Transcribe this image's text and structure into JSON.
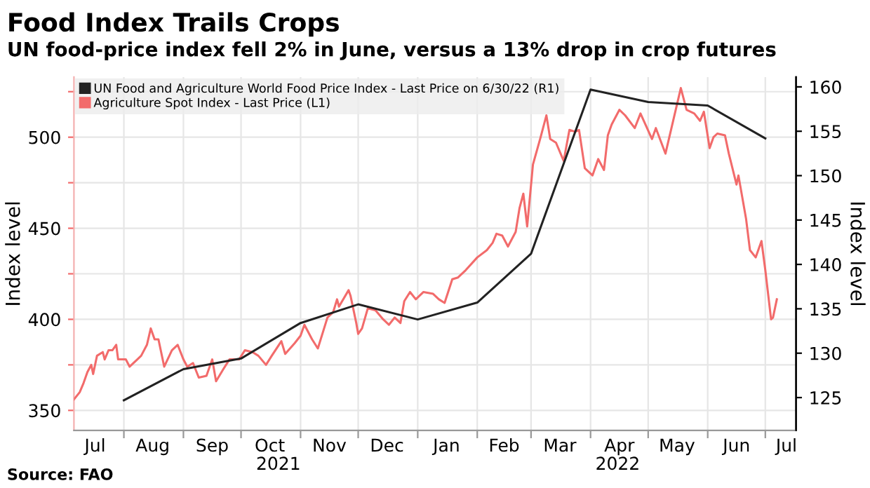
{
  "chart_data": {
    "type": "line",
    "title": "Food Index Trails Crops",
    "subtitle": "UN food-price index fell 2% in June, versus a 13% drop in crop futures",
    "ylabel": "Index level",
    "y2label": "Index level",
    "annotations": [
      "2021",
      "2022",
      "Source: FAO"
    ],
    "series": [
      {
        "name": "UN Food and Agriculture World Food Price Index - Last Price on 6/30/22 (R1)",
        "color": "#222222",
        "axis": "y2",
        "x": [
          "2021-08-01",
          "2021-09-01",
          "2021-10-01",
          "2021-11-01",
          "2021-12-01",
          "2022-01-01",
          "2022-02-01",
          "2022-03-01",
          "2022-04-01",
          "2022-05-01",
          "2022-06-01",
          "2022-07-01"
        ],
        "values": [
          124.7,
          128.2,
          129.4,
          133.4,
          135.5,
          133.8,
          135.7,
          141.2,
          159.7,
          158.3,
          157.9,
          154.2
        ]
      },
      {
        "name": "Agriculture Spot Index - Last Price (L1)",
        "color": "#f26b6b",
        "x": [
          "2021-07-06",
          "2021-07-09",
          "2021-07-11",
          "2021-07-13",
          "2021-07-15",
          "2021-07-16",
          "2021-07-18",
          "2021-07-21",
          "2021-07-22",
          "2021-07-24",
          "2021-07-26",
          "2021-07-28",
          "2021-07-29",
          "2021-08-02",
          "2021-08-04",
          "2021-08-08",
          "2021-08-10",
          "2021-08-13",
          "2021-08-15",
          "2021-08-17",
          "2021-08-19",
          "2021-08-22",
          "2021-08-26",
          "2021-08-29",
          "2021-09-01",
          "2021-09-03",
          "2021-09-06",
          "2021-09-09",
          "2021-09-13",
          "2021-09-16",
          "2021-09-18",
          "2021-09-22",
          "2021-09-25",
          "2021-09-30",
          "2021-10-03",
          "2021-10-07",
          "2021-10-10",
          "2021-10-14",
          "2021-10-17",
          "2021-10-22",
          "2021-10-24",
          "2021-10-29",
          "2021-11-01",
          "2021-11-03",
          "2021-11-07",
          "2021-11-10",
          "2021-11-15",
          "2021-11-18",
          "2021-11-20",
          "2021-11-21",
          "2021-11-26",
          "2021-11-27",
          "2021-11-30",
          "2021-12-01",
          "2021-12-03",
          "2021-12-06",
          "2021-12-10",
          "2021-12-14",
          "2021-12-17",
          "2021-12-20",
          "2021-12-23",
          "2021-12-25",
          "2021-12-28",
          "2021-12-31",
          "2022-01-04",
          "2022-01-09",
          "2022-01-12",
          "2022-01-15",
          "2022-01-19",
          "2022-01-22",
          "2022-01-26",
          "2022-02-01",
          "2022-02-06",
          "2022-02-09",
          "2022-02-11",
          "2022-02-14",
          "2022-02-17",
          "2022-02-21",
          "2022-02-23",
          "2022-02-25",
          "2022-02-27",
          "2022-03-02",
          "2022-03-06",
          "2022-03-09",
          "2022-03-11",
          "2022-03-14",
          "2022-03-18",
          "2022-03-21",
          "2022-03-24",
          "2022-03-26",
          "2022-03-29",
          "2022-04-02",
          "2022-04-05",
          "2022-04-08",
          "2022-04-10",
          "2022-04-12",
          "2022-04-16",
          "2022-04-19",
          "2022-04-24",
          "2022-04-27",
          "2022-05-03",
          "2022-05-05",
          "2022-05-10",
          "2022-05-14",
          "2022-05-18",
          "2022-05-21",
          "2022-05-25",
          "2022-05-28",
          "2022-05-30",
          "2022-06-02",
          "2022-06-04",
          "2022-06-06",
          "2022-06-10",
          "2022-06-12",
          "2022-06-16",
          "2022-06-17",
          "2022-06-21",
          "2022-06-23",
          "2022-06-26",
          "2022-06-29",
          "2022-07-01",
          "2022-07-04",
          "2022-07-05",
          "2022-07-07"
        ],
        "values": [
          356,
          360,
          365,
          371,
          375,
          370,
          380,
          382,
          378,
          383,
          383,
          386,
          378,
          378,
          374,
          378,
          380,
          386,
          395,
          389,
          389,
          374,
          383,
          386,
          378,
          374,
          376,
          368,
          369,
          378,
          366,
          373,
          378,
          378,
          383,
          382,
          380,
          375,
          380,
          388,
          381,
          387,
          391,
          397,
          389,
          384,
          401,
          404,
          411,
          407,
          416,
          413,
          398,
          392,
          395,
          406,
          405,
          400,
          397,
          401,
          398,
          410,
          415,
          411,
          415,
          414,
          411,
          409,
          422,
          423,
          427,
          434,
          438,
          442,
          447,
          446,
          440,
          448,
          461,
          469,
          451,
          485,
          500,
          512,
          499,
          497,
          487,
          504,
          503,
          504,
          483,
          479,
          488,
          482,
          501,
          507,
          515,
          512,
          505,
          513,
          499,
          505,
          491,
          509,
          527,
          515,
          513,
          509,
          514,
          494,
          500,
          502,
          501,
          491,
          474,
          479,
          455,
          438,
          434,
          443,
          427,
          400,
          401,
          411
        ]
      }
    ],
    "xlim": [
      "2021-07-06",
      "2022-07-17"
    ],
    "xticks": [
      {
        "value": "2021-08-01",
        "label": null
      },
      {
        "value": "2021-09-01",
        "label": null
      },
      {
        "value": "2021-10-01",
        "label": null
      },
      {
        "value": "2021-11-01",
        "label": null
      },
      {
        "value": "2021-12-01",
        "label": null
      },
      {
        "value": "2022-01-01",
        "label": null
      },
      {
        "value": "2022-02-01",
        "label": null
      },
      {
        "value": "2022-03-01",
        "label": null
      },
      {
        "value": "2022-04-01",
        "label": null
      },
      {
        "value": "2022-05-01",
        "label": null
      },
      {
        "value": "2022-06-01",
        "label": null
      },
      {
        "value": "2022-07-01",
        "label": null
      },
      {
        "value": "2021-07-17",
        "label": "Jul"
      },
      {
        "value": "2021-08-16",
        "label": "Aug"
      },
      {
        "value": "2021-09-16",
        "label": "Sep"
      },
      {
        "value": "2021-10-16",
        "label": "Oct"
      },
      {
        "value": "2021-11-16",
        "label": "Nov"
      },
      {
        "value": "2021-12-16",
        "label": "Dec"
      },
      {
        "value": "2022-01-16",
        "label": "Jan"
      },
      {
        "value": "2022-02-15",
        "label": "Feb"
      },
      {
        "value": "2022-03-16",
        "label": "Mar"
      },
      {
        "value": "2022-04-16",
        "label": "Apr"
      },
      {
        "value": "2022-05-16",
        "label": "May"
      },
      {
        "value": "2022-06-16",
        "label": "Jun"
      },
      {
        "value": "2022-07-12",
        "label": "Jul"
      }
    ],
    "ylim": [
      339,
      533
    ],
    "yticks": [
      350,
      {
        "value": 375,
        "label": null
      },
      400,
      {
        "value": 425,
        "label": null
      },
      450,
      {
        "value": 475,
        "label": null
      },
      500,
      {
        "value": 525,
        "label": null
      }
    ],
    "y2lim": [
      121.3,
      161.1
    ],
    "y2ticks": [
      125,
      130,
      135,
      140,
      145,
      150,
      155,
      160
    ],
    "grid": true,
    "legend": "top left"
  }
}
